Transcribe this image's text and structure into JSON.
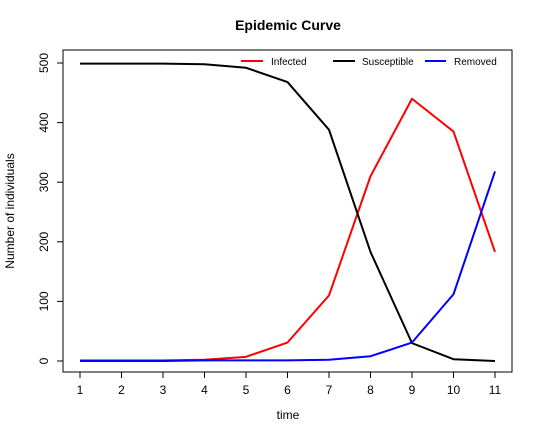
{
  "chart_data": {
    "type": "line",
    "title": "Epidemic Curve",
    "xlabel": "time",
    "ylabel": "Number of individuals",
    "x": [
      1,
      2,
      3,
      4,
      5,
      6,
      7,
      8,
      9,
      10,
      11
    ],
    "xlim": [
      1,
      11
    ],
    "ylim": [
      0,
      500
    ],
    "xticks": [
      1,
      2,
      3,
      4,
      5,
      6,
      7,
      8,
      9,
      10,
      11
    ],
    "yticks": [
      0,
      100,
      200,
      300,
      400,
      500
    ],
    "grid": false,
    "legend_position": "top",
    "series": [
      {
        "name": "Infected",
        "color": "#ff0000",
        "values": [
          1,
          1,
          1,
          2,
          7,
          31,
          110,
          310,
          440,
          385,
          183
        ]
      },
      {
        "name": "Susceptible",
        "color": "#000000",
        "values": [
          499,
          499,
          499,
          498,
          492,
          468,
          388,
          183,
          30,
          3,
          0
        ]
      },
      {
        "name": "Removed",
        "color": "#0000ff",
        "values": [
          0,
          0,
          0,
          1,
          1,
          1,
          2,
          8,
          31,
          112,
          318
        ]
      }
    ]
  }
}
